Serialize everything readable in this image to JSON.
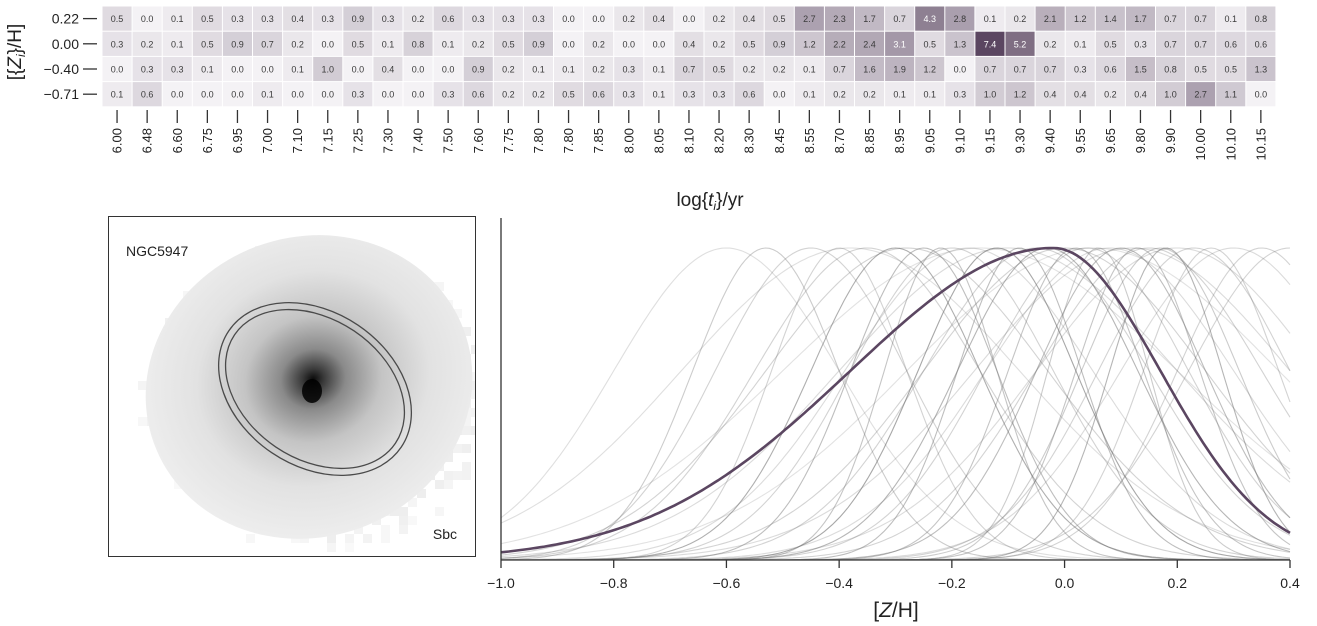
{
  "heatmap": {
    "type": "heatmap",
    "ylabel": "[{Z_i}/H]",
    "xlabel": "log{t_j}/yr",
    "rows": [
      "0.22",
      "0.00",
      "−0.40",
      "−0.71"
    ],
    "cols": [
      "6.00",
      "6.48",
      "6.60",
      "6.75",
      "6.95",
      "7.00",
      "7.10",
      "7.15",
      "7.25",
      "7.30",
      "7.40",
      "7.50",
      "7.60",
      "7.75",
      "7.80",
      "7.80",
      "7.85",
      "8.00",
      "8.05",
      "8.10",
      "8.20",
      "8.30",
      "8.45",
      "8.55",
      "8.70",
      "8.85",
      "8.95",
      "9.05",
      "9.10",
      "9.15",
      "9.30",
      "9.40",
      "9.55",
      "9.65",
      "9.80",
      "9.90",
      "10.00",
      "10.10",
      "10.15"
    ],
    "values": [
      [
        0.5,
        0.0,
        0.1,
        0.5,
        0.3,
        0.3,
        0.4,
        0.3,
        0.9,
        0.3,
        0.2,
        0.6,
        0.3,
        0.3,
        0.3,
        0.0,
        0.0,
        0.2,
        0.4,
        0.0,
        0.2,
        0.4,
        0.5,
        2.7,
        2.3,
        1.7,
        0.7,
        4.3,
        2.8,
        0.1,
        0.2,
        2.1,
        1.2,
        1.4,
        1.7,
        0.7,
        0.7,
        0.1,
        0.8
      ],
      [
        0.3,
        0.2,
        0.1,
        0.5,
        0.9,
        0.7,
        0.2,
        0.0,
        0.5,
        0.1,
        0.8,
        0.1,
        0.2,
        0.5,
        0.9,
        0.0,
        0.2,
        0.0,
        0.0,
        0.4,
        0.2,
        0.5,
        0.9,
        1.2,
        2.2,
        2.4,
        3.1,
        0.5,
        1.3,
        7.4,
        5.2,
        0.2,
        0.1,
        0.5,
        0.3,
        0.7,
        0.7,
        0.6,
        0.6
      ],
      [
        0.0,
        0.3,
        0.3,
        0.1,
        0.0,
        0.0,
        0.1,
        1.0,
        0.0,
        0.4,
        0.0,
        0.0,
        0.9,
        0.2,
        0.1,
        0.1,
        0.2,
        0.3,
        0.1,
        0.7,
        0.5,
        0.2,
        0.2,
        0.1,
        0.7,
        1.6,
        1.9,
        1.2,
        0.0,
        0.7,
        0.7,
        0.7,
        0.3,
        0.6,
        1.5,
        0.8,
        0.5,
        0.5,
        1.3
      ],
      [
        0.1,
        0.6,
        0.0,
        0.0,
        0.0,
        0.1,
        0.0,
        0.0,
        0.3,
        0.0,
        0.0,
        0.3,
        0.6,
        0.2,
        0.2,
        0.5,
        0.6,
        0.3,
        0.1,
        0.3,
        0.3,
        0.6,
        0.0,
        0.1,
        0.2,
        0.2,
        0.1,
        0.1,
        0.3,
        1.0,
        1.2,
        0.4,
        0.4,
        0.2,
        0.4,
        1.0,
        2.7,
        1.1,
        0.0
      ]
    ],
    "colors": {
      "low": "#f4f2f5",
      "high": "#5b4661",
      "text_dark": "#3a3a3a",
      "text_light": "#ffffff"
    }
  },
  "galaxy": {
    "name": "NGC5947",
    "type": "Sbc"
  },
  "chart_data": {
    "type": "line",
    "xlabel": "[Z/H]",
    "xlim": [
      -1.0,
      0.4
    ],
    "xticks": [
      "−1.0",
      "−0.8",
      "−0.6",
      "−0.4",
      "−0.2",
      "0.0",
      "0.2",
      "0.4"
    ],
    "xtick_values": [
      -1.0,
      -0.8,
      -0.6,
      -0.4,
      -0.2,
      0.0,
      0.2,
      0.4
    ],
    "highlight": {
      "mu": -0.02,
      "sigma_left": 0.36,
      "sigma_right": 0.19,
      "color": "#5b4661"
    },
    "background_curves": [
      {
        "mu": -0.53,
        "sigma": 0.13,
        "alpha": 0.35
      },
      {
        "mu": -0.45,
        "sigma": 0.17,
        "alpha": 0.3
      },
      {
        "mu": -0.4,
        "sigma": 0.12,
        "alpha": 0.3
      },
      {
        "mu": -0.35,
        "sigma": 0.2,
        "alpha": 0.3
      },
      {
        "mu": -0.3,
        "sigma": 0.15,
        "alpha": 0.55
      },
      {
        "mu": -0.28,
        "sigma": 0.25,
        "alpha": 0.3
      },
      {
        "mu": -0.22,
        "sigma": 0.1,
        "alpha": 0.4
      },
      {
        "mu": -0.2,
        "sigma": 0.18,
        "alpha": 0.3
      },
      {
        "mu": -0.17,
        "sigma": 0.22,
        "alpha": 0.25
      },
      {
        "mu": -0.12,
        "sigma": 0.14,
        "alpha": 0.6
      },
      {
        "mu": -0.1,
        "sigma": 0.3,
        "alpha": 0.25
      },
      {
        "mu": -0.08,
        "sigma": 0.11,
        "alpha": 0.45
      },
      {
        "mu": -0.05,
        "sigma": 0.2,
        "alpha": 0.3
      },
      {
        "mu": -0.03,
        "sigma": 0.16,
        "alpha": 0.5
      },
      {
        "mu": 0.0,
        "sigma": 0.25,
        "alpha": 0.3
      },
      {
        "mu": 0.02,
        "sigma": 0.12,
        "alpha": 0.4
      },
      {
        "mu": 0.04,
        "sigma": 0.18,
        "alpha": 0.3
      },
      {
        "mu": 0.06,
        "sigma": 0.09,
        "alpha": 0.35
      },
      {
        "mu": 0.08,
        "sigma": 0.22,
        "alpha": 0.25
      },
      {
        "mu": 0.1,
        "sigma": 0.15,
        "alpha": 0.45
      },
      {
        "mu": 0.12,
        "sigma": 0.28,
        "alpha": 0.25
      },
      {
        "mu": 0.13,
        "sigma": 0.11,
        "alpha": 0.4
      },
      {
        "mu": 0.15,
        "sigma": 0.2,
        "alpha": 0.3
      },
      {
        "mu": 0.17,
        "sigma": 0.14,
        "alpha": 0.35
      },
      {
        "mu": 0.2,
        "sigma": 0.25,
        "alpha": 0.25
      },
      {
        "mu": 0.23,
        "sigma": 0.17,
        "alpha": 0.3
      },
      {
        "mu": 0.26,
        "sigma": 0.12,
        "alpha": 0.3
      },
      {
        "mu": 0.3,
        "sigma": 0.2,
        "alpha": 0.25
      },
      {
        "mu": 0.35,
        "sigma": 0.15,
        "alpha": 0.3
      },
      {
        "mu": 0.4,
        "sigma": 0.18,
        "alpha": 0.3
      },
      {
        "mu": -0.6,
        "sigma": 0.2,
        "alpha": 0.22
      },
      {
        "mu": -0.38,
        "sigma": 0.3,
        "alpha": 0.22
      },
      {
        "mu": -0.15,
        "sigma": 0.35,
        "alpha": 0.2
      },
      {
        "mu": 0.05,
        "sigma": 0.33,
        "alpha": 0.2
      },
      {
        "mu": -0.25,
        "sigma": 0.13,
        "alpha": 0.45
      },
      {
        "mu": 0.18,
        "sigma": 0.1,
        "alpha": 0.5
      }
    ]
  }
}
